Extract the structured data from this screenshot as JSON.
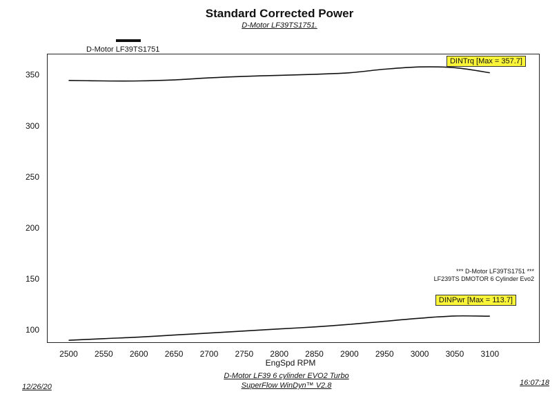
{
  "chart_data": {
    "type": "line",
    "title": "Standard Corrected Power",
    "subtitle": "D-Motor LF39TS1751.",
    "legend": "D-Motor LF39TS1751",
    "xlabel": "EngSpd RPM",
    "ylabel": "",
    "xlim": [
      2470,
      3170
    ],
    "ylim": [
      88,
      370
    ],
    "x_ticks": [
      2500,
      2550,
      2600,
      2650,
      2700,
      2750,
      2800,
      2850,
      2900,
      2950,
      3000,
      3050,
      3100
    ],
    "y_ticks": [
      100,
      150,
      200,
      250,
      300,
      350
    ],
    "series": [
      {
        "name": "DINTrq",
        "label": "DINTrq [Max = 357.7]",
        "x": [
          2500,
          2550,
          2600,
          2650,
          2700,
          2750,
          2800,
          2850,
          2900,
          2950,
          3000,
          3050,
          3100
        ],
        "values": [
          344.5,
          344.0,
          344.0,
          345.0,
          347.0,
          348.5,
          349.5,
          350.5,
          352.0,
          355.5,
          357.7,
          357.0,
          352.0
        ]
      },
      {
        "name": "DINPwr",
        "label": "DINPwr [Max = 113.7]",
        "x": [
          2500,
          2550,
          2600,
          2650,
          2700,
          2750,
          2800,
          2850,
          2900,
          2950,
          3000,
          3050,
          3100
        ],
        "values": [
          89.9,
          91.5,
          93.0,
          95.0,
          97.0,
          99.0,
          101.0,
          103.0,
          105.5,
          108.5,
          111.5,
          113.7,
          113.5
        ]
      }
    ],
    "notes": [
      "*** D-Motor LF39TS1751 ***",
      "LF239TS DMOTOR 6 Cylinder Evo2"
    ],
    "footer": {
      "line1": "D-Motor LF39 6 cylinder EVO2 Turbo",
      "line2": "SuperFlow WinDyn™ V2.8",
      "date": "12/26/20",
      "time": "16:07:18"
    }
  }
}
